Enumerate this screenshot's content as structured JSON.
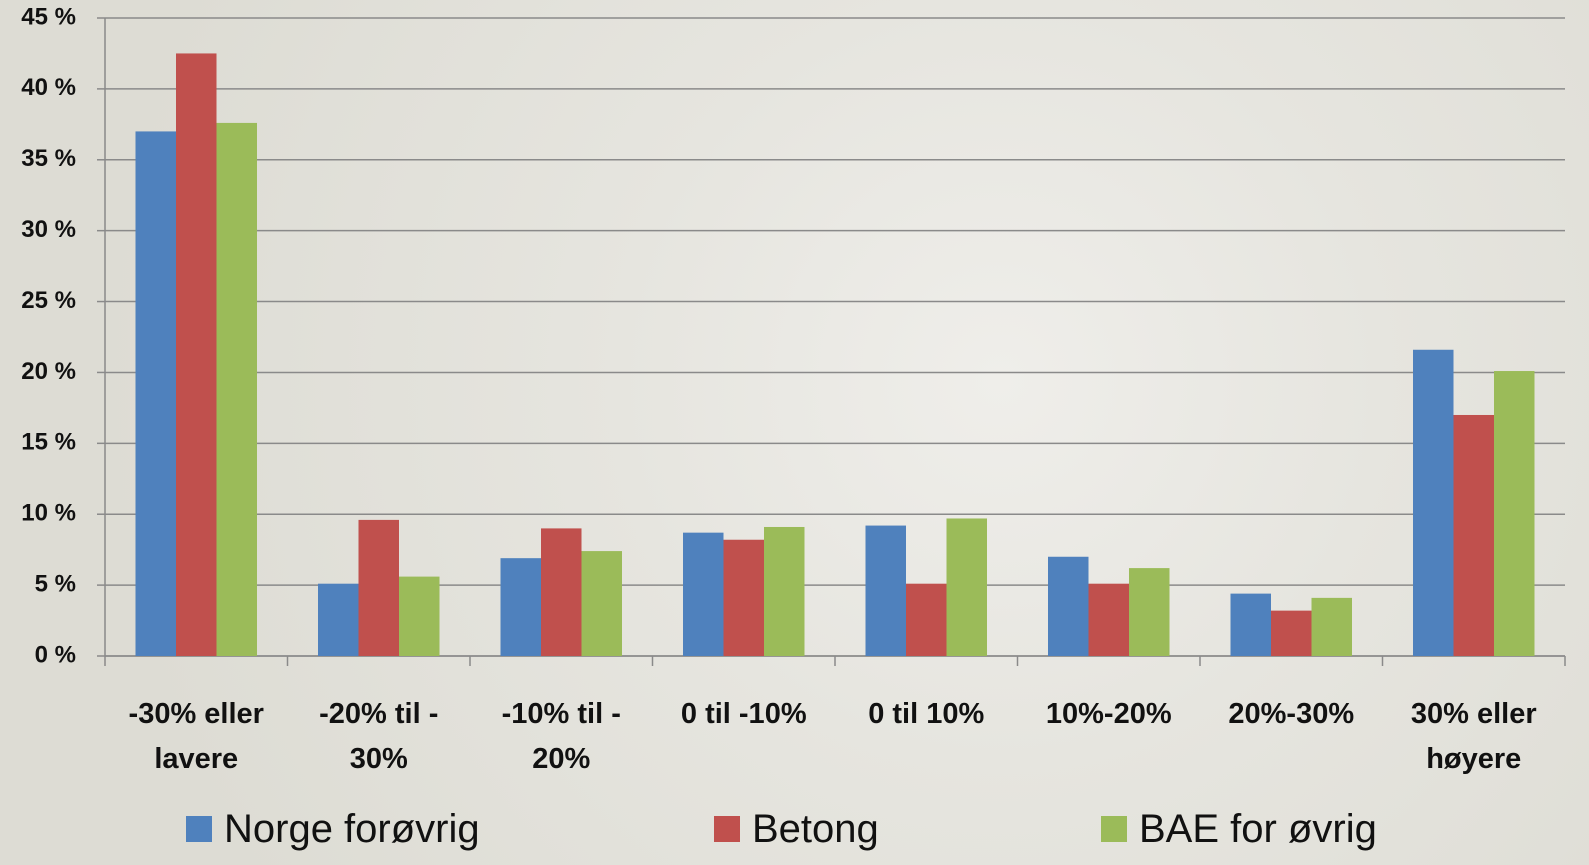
{
  "chart_data": {
    "type": "bar",
    "categories": [
      "-30% eller\nlavere",
      "-20% til -\n30%",
      "-10% til -\n20%",
      "0 til -10%",
      "0 til 10%",
      "10%-20%",
      "20%-30%",
      "30% eller\nhøyere"
    ],
    "series": [
      {
        "name": "Norge forøvrig",
        "color": "#4f81bd",
        "values": [
          37.0,
          5.1,
          6.9,
          8.7,
          9.2,
          7.0,
          4.4,
          21.6
        ]
      },
      {
        "name": "Betong",
        "color": "#c0504d",
        "values": [
          42.5,
          9.6,
          9.0,
          8.2,
          5.1,
          5.1,
          3.2,
          17.0
        ]
      },
      {
        "name": "BAE for øvrig",
        "color": "#9bbb59",
        "values": [
          37.6,
          5.6,
          7.4,
          9.1,
          9.7,
          6.2,
          4.1,
          20.1
        ]
      }
    ],
    "ylim": [
      0,
      45
    ],
    "yticks": [
      {
        "value": 0,
        "label": "0 %"
      },
      {
        "value": 5,
        "label": "5 %"
      },
      {
        "value": 10,
        "label": "10 %"
      },
      {
        "value": 15,
        "label": "15 %"
      },
      {
        "value": 20,
        "label": "20 %"
      },
      {
        "value": 25,
        "label": "25 %"
      },
      {
        "value": 30,
        "label": "30 %"
      },
      {
        "value": 35,
        "label": "35 %"
      },
      {
        "value": 40,
        "label": "40 %"
      },
      {
        "value": 45,
        "label": "45 %"
      }
    ],
    "grid": true
  }
}
